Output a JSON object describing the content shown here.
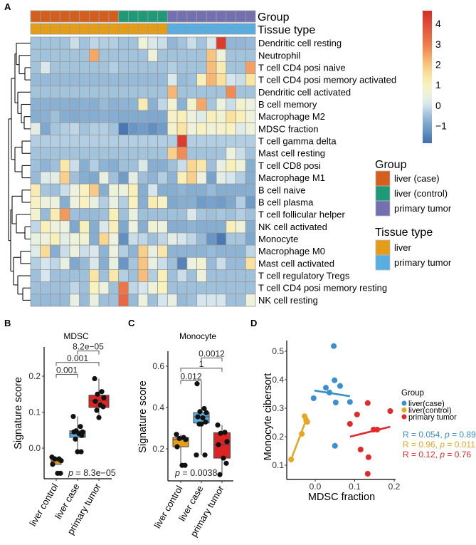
{
  "panel_labels": {
    "a": "A",
    "b": "B",
    "c": "C",
    "d": "D"
  },
  "heatmap": {
    "annotation_titles": {
      "group": "Group",
      "tissue": "Tissue type"
    },
    "column_group": [
      0,
      0,
      0,
      0,
      0,
      0,
      0,
      0,
      0,
      1,
      1,
      1,
      1,
      1,
      2,
      2,
      2,
      2,
      2,
      2,
      2,
      2,
      2
    ],
    "column_tissue": [
      0,
      0,
      0,
      0,
      0,
      0,
      0,
      0,
      0,
      0,
      0,
      0,
      0,
      0,
      1,
      1,
      1,
      1,
      1,
      1,
      1,
      1,
      1
    ],
    "rows": [
      "Dendritic cell resting",
      "Neutrophil",
      "T cell CD4 posi naive",
      "T cell CD4 posi memory activated",
      "Dendritic cell activated",
      "B cell memory",
      "Macrophage M2",
      "MDSC fraction",
      "T cell gamma delta",
      "Mast cell resting",
      "T cell CD8 posi",
      "Macrophage M1",
      "B cell naive",
      "B cell plasma",
      "T cell follicular helper",
      "NK cell activated",
      "Monocyte",
      "Macrophage M0",
      "Mast cell activated",
      "T cell regulatory Tregs",
      "T cell CD4 posi memory resting",
      "NK cell resting"
    ],
    "values": [
      [
        -0.45,
        -0.45,
        -0.45,
        -0.45,
        -0.1,
        -0.45,
        -0.2,
        -0.3,
        -0.3,
        -0.45,
        -0.45,
        0.6,
        0.1,
        -0.1,
        -0.65,
        -0.45,
        -0.1,
        -0.45,
        0.1,
        4.3,
        -0.65,
        -0.65,
        -0.6
      ],
      [
        -0.45,
        -0.45,
        -0.45,
        -0.45,
        -0.45,
        -0.45,
        2.4,
        -0.45,
        -0.45,
        -0.45,
        -0.45,
        -0.45,
        0.6,
        -0.45,
        -0.45,
        -0.45,
        -0.45,
        -0.45,
        2.0,
        0.6,
        -0.45,
        -0.45,
        -0.45
      ],
      [
        -0.45,
        0.1,
        -0.45,
        -0.45,
        -0.45,
        -0.45,
        -0.45,
        -0.45,
        -0.3,
        -0.45,
        -0.45,
        -0.45,
        -0.45,
        -0.45,
        -0.3,
        -0.45,
        -0.45,
        -0.45,
        2.1,
        1.2,
        -0.45,
        -0.45,
        2.5
      ],
      [
        -0.6,
        -0.6,
        -0.6,
        -0.6,
        -0.6,
        -0.6,
        -0.6,
        -0.6,
        -0.6,
        -0.6,
        -0.6,
        -0.6,
        -0.6,
        -0.6,
        0.1,
        -0.6,
        -0.5,
        1.1,
        2.2,
        1.5,
        0.0,
        -0.1,
        1.4
      ],
      [
        -0.45,
        -0.45,
        -0.45,
        -0.45,
        -0.45,
        -0.45,
        -0.45,
        -0.45,
        -0.45,
        -0.45,
        -0.45,
        -0.45,
        -0.45,
        -0.45,
        2.2,
        -0.45,
        -0.45,
        -0.45,
        -0.45,
        -0.45,
        2.8,
        -0.45,
        -0.45
      ],
      [
        -0.75,
        -0.75,
        -0.75,
        -0.75,
        -0.8,
        -0.75,
        -0.8,
        -0.6,
        -0.75,
        -0.7,
        -0.7,
        1.2,
        -0.75,
        -0.2,
        0.7,
        -0.75,
        0.8,
        2.4,
        -0.4,
        0.5,
        -0.1,
        0.8,
        0.5
      ],
      [
        -0.8,
        -0.75,
        -0.5,
        -0.8,
        -0.85,
        -0.8,
        -0.8,
        -0.75,
        -0.8,
        -0.85,
        -0.85,
        -0.85,
        -0.9,
        -0.9,
        0.9,
        1.1,
        0.5,
        0.2,
        1.1,
        0.7,
        1.5,
        1.1,
        0.6
      ],
      [
        0.3,
        -0.9,
        -0.4,
        -0.3,
        -0.2,
        -0.45,
        -0.3,
        -0.3,
        -0.45,
        -1.7,
        -1.2,
        -1.1,
        -1.3,
        -1.1,
        0.8,
        1.4,
        0.6,
        1.0,
        0.6,
        0.8,
        1.0,
        0.2,
        0.6
      ],
      [
        -0.3,
        -0.3,
        -0.3,
        -0.3,
        -0.3,
        -0.3,
        -0.3,
        -0.3,
        -0.3,
        -0.3,
        -0.3,
        -0.3,
        -0.3,
        -0.3,
        -0.3,
        4.3,
        -0.3,
        -0.3,
        -0.3,
        -0.3,
        -0.3,
        -0.3,
        -0.3
      ],
      [
        -0.45,
        -0.45,
        -0.45,
        -0.45,
        -0.45,
        -0.45,
        -0.45,
        -0.45,
        -0.45,
        -0.45,
        -0.45,
        -0.45,
        -0.45,
        -0.45,
        1.8,
        2.8,
        -0.45,
        -0.45,
        -0.45,
        -0.45,
        0.5,
        -0.1,
        -0.45
      ],
      [
        -0.5,
        -0.7,
        -0.5,
        1.3,
        -0.1,
        -0.8,
        -0.3,
        -0.7,
        -0.8,
        -0.5,
        -0.5,
        0.1,
        -0.8,
        -0.8,
        -0.5,
        -0.1,
        1.7,
        1.3,
        -0.5,
        0.4,
        1.1,
        0.6,
        -0.8
      ],
      [
        -0.6,
        0.2,
        0.3,
        1.8,
        -0.5,
        -0.8,
        -0.9,
        0.4,
        -0.5,
        -1.1,
        0.3,
        -0.5,
        -0.7,
        -0.3,
        -0.7,
        1.1,
        1.8,
        0.5,
        -1.0,
        0.3,
        0.0,
        -0.3,
        -0.8
      ],
      [
        1.2,
        -0.4,
        -0.5,
        -0.1,
        0.5,
        1.0,
        1.9,
        -0.8,
        0.6,
        0.5,
        1.1,
        -0.8,
        0.0,
        -0.8,
        -0.8,
        -0.7,
        -0.8,
        -0.8,
        -0.6,
        -0.8,
        -0.8,
        -0.8,
        -0.8
      ],
      [
        0.9,
        0.5,
        0.5,
        -0.8,
        0.5,
        1.0,
        0.4,
        -0.3,
        0.4,
        -0.3,
        1.0,
        -0.8,
        1.2,
        0.9,
        -0.9,
        -0.8,
        -0.8,
        -1.1,
        -1.0,
        -1.1,
        -0.9,
        -0.3,
        -1.1
      ],
      [
        0.8,
        -0.6,
        1.2,
        2.6,
        -0.5,
        -0.6,
        -0.6,
        -0.5,
        1.1,
        -0.5,
        0.4,
        -0.5,
        -0.5,
        -0.5,
        -0.5,
        -0.5,
        0.1,
        -0.4,
        -0.5,
        -0.4,
        -0.5,
        -0.3,
        -0.5
      ],
      [
        -0.2,
        1.1,
        0.5,
        0.5,
        -0.9,
        1.1,
        -0.8,
        0.1,
        1.1,
        -0.9,
        0.5,
        -0.8,
        0.7,
        0.5,
        -0.8,
        -0.8,
        -0.7,
        -0.8,
        -0.8,
        -0.8,
        1.1,
        0.6,
        -0.8
      ],
      [
        0.4,
        0.5,
        1.1,
        0.3,
        0.6,
        0.7,
        -0.8,
        1.7,
        0.5,
        -1.3,
        -0.1,
        -0.2,
        -0.5,
        -0.2,
        0.3,
        0.0,
        -0.2,
        -0.6,
        -1.2,
        -1.7,
        -0.4,
        -0.4,
        -0.9
      ],
      [
        0.2,
        1.6,
        -0.8,
        -0.1,
        0.5,
        -0.1,
        0.1,
        -0.7,
        0.5,
        -0.3,
        -0.7,
        1.8,
        0.4,
        1.3,
        -0.7,
        -0.7,
        -0.7,
        -0.7,
        -0.6,
        -0.7,
        -0.7,
        -0.7,
        -0.2
      ],
      [
        -0.3,
        0.0,
        -0.2,
        0.4,
        -0.9,
        -0.6,
        0.1,
        -0.8,
        0.4,
        -1.2,
        -0.4,
        2.0,
        0.4,
        -0.1,
        -0.5,
        -1.5,
        0.5,
        0.7,
        -0.6,
        -0.1,
        -0.6,
        -0.6,
        1.5
      ],
      [
        -0.5,
        0.0,
        -0.5,
        -0.5,
        -0.5,
        -0.5,
        1.4,
        -0.5,
        1.3,
        -0.3,
        -0.5,
        2.1,
        -0.3,
        1.1,
        -0.5,
        -0.1,
        -0.5,
        0.6,
        -0.5,
        -0.5,
        -0.5,
        -0.5,
        -0.5
      ],
      [
        -0.5,
        -0.5,
        -0.5,
        -0.5,
        -0.2,
        -0.5,
        1.0,
        0.5,
        -0.5,
        3.1,
        -0.2,
        0.0,
        0.6,
        1.0,
        -0.5,
        -0.5,
        -0.5,
        -0.5,
        -0.5,
        -0.5,
        -0.5,
        -0.5,
        -0.5
      ],
      [
        -0.6,
        -0.6,
        -0.6,
        -0.6,
        0.4,
        -0.6,
        0.4,
        -0.5,
        -0.5,
        3.4,
        -0.6,
        0.5,
        -0.5,
        0.0,
        0.4,
        -0.6,
        -0.5,
        0.0,
        0.0,
        0.0,
        -0.5,
        -0.5,
        0.6
      ]
    ],
    "colorbar": {
      "range": [
        -1.85,
        4.63
      ],
      "tick_values": [
        4,
        3,
        2,
        1,
        0,
        -1
      ],
      "tick_labels": [
        "4",
        "3",
        "2",
        "1",
        "0",
        "−1"
      ]
    }
  },
  "legends": {
    "group": {
      "title": "Group",
      "items": [
        {
          "label": "liver (case)",
          "color": "#d45f1c"
        },
        {
          "label": "liver (control)",
          "color": "#1f9a77"
        },
        {
          "label": "primary tumor",
          "color": "#7470b0"
        }
      ]
    },
    "tissue": {
      "title": "Tissue type",
      "items": [
        {
          "label": "liver",
          "color": "#e39d17"
        },
        {
          "label": "primary tumor",
          "color": "#58aee0"
        }
      ]
    }
  },
  "chart_data": [
    {
      "type": "box",
      "title": "MDSC",
      "ylabel": "Signature score",
      "categories": [
        "liver control",
        "liver case",
        "primary tumor"
      ],
      "colors": [
        "#e39d17",
        "#58aee0",
        "#dd2424"
      ],
      "yticks": [
        0,
        0.1,
        0.2
      ],
      "ytick_labels": [
        "0.0",
        "0.1",
        "0.2"
      ],
      "box_stats": [
        [
          -0.045,
          -0.045,
          -0.036,
          -0.03,
          -0.025
        ],
        [
          -0.01,
          0.03,
          0.04,
          0.048,
          0.088
        ],
        [
          0.085,
          0.113,
          0.133,
          0.147,
          0.193
        ]
      ],
      "points": [
        [
          -0.025,
          -0.03,
          -0.03,
          -0.035,
          -0.045,
          -0.07,
          -0.07
        ],
        [
          0.088,
          0.06,
          0.048,
          0.045,
          0.045,
          0.04,
          0.035,
          0.025,
          -0.01,
          -0.01
        ],
        [
          0.193,
          0.157,
          0.15,
          0.14,
          0.13,
          0.12,
          0.115,
          0.105,
          0.085
        ]
      ],
      "comparisons": [
        {
          "from": 0,
          "to": 1,
          "y": 0.205,
          "label": "0.001"
        },
        {
          "from": 0,
          "to": 2,
          "y": 0.238,
          "label": "0.001"
        },
        {
          "from": 1,
          "to": 2,
          "y": 0.27,
          "label": "8.2e−05"
        }
      ],
      "stat_text": {
        "p": "p",
        "rest": " = 8.3e−05"
      }
    },
    {
      "type": "box",
      "title": "Monocyte",
      "ylabel": "Signature score",
      "categories": [
        "liver control",
        "liver case",
        "primary tumor"
      ],
      "colors": [
        "#e39d17",
        "#58aee0",
        "#dd2424"
      ],
      "yticks": [
        0.2,
        0.4,
        0.6
      ],
      "ytick_labels": [
        "0.2",
        "0.4",
        "0.6"
      ],
      "box_stats": [
        [
          0.12,
          0.21,
          0.245,
          0.255,
          0.27
        ],
        [
          0.17,
          0.325,
          0.355,
          0.375,
          0.515
        ],
        [
          0.075,
          0.155,
          0.222,
          0.278,
          0.315
        ]
      ],
      "points": [
        [
          0.27,
          0.255,
          0.25,
          0.245,
          0.21,
          0.12,
          0.12
        ],
        [
          0.515,
          0.395,
          0.38,
          0.375,
          0.355,
          0.35,
          0.33,
          0.32,
          0.32,
          0.17,
          0.17
        ],
        [
          0.315,
          0.28,
          0.275,
          0.235,
          0.22,
          0.155,
          0.13,
          0.075
        ]
      ],
      "comparisons": [
        {
          "from": 0,
          "to": 1,
          "y": 0.53,
          "label": "0.012"
        },
        {
          "from": 0,
          "to": 2,
          "y": 0.59,
          "label": "1"
        },
        {
          "from": 1,
          "to": 2,
          "y": 0.64,
          "label": "0.0012"
        }
      ],
      "stat_text": {
        "p": "p",
        "rest": " = 0.0038"
      }
    },
    {
      "type": "scatter",
      "xlabel": "MDSC fraction",
      "ylabel": "Monocyte cibersort",
      "xticks": [
        0,
        0.1,
        0.2
      ],
      "xtick_labels": [
        "0.0",
        "0.1",
        "0.2"
      ],
      "yticks": [
        0.1,
        0.2,
        0.3,
        0.4,
        0.5
      ],
      "ytick_labels": [
        "0.1",
        "0.2",
        "0.3",
        "0.4",
        "0.5"
      ],
      "legend": {
        "title": "Group",
        "placement": "right"
      },
      "series": [
        {
          "name": "liver(case)",
          "color": "#3a8fd0",
          "x": [
            0.047,
            0.049,
            0.063,
            0.027,
            0.036,
            -0.004,
            0.052,
            0.088,
            0.05
          ],
          "y": [
            0.518,
            0.398,
            0.378,
            0.372,
            0.355,
            0.335,
            0.32,
            0.322,
            0.168
          ],
          "fit": [
            [
              -0.002,
              0.362
            ],
            [
              0.088,
              0.342
            ]
          ],
          "stat": {
            "r": "R = 0.054, ",
            "p": "p",
            "rest": " = 0.89"
          }
        },
        {
          "name": "liver(control)",
          "color": "#e8a622",
          "x": [
            -0.061,
            -0.034,
            -0.027,
            -0.023,
            -0.02
          ],
          "y": [
            0.12,
            0.21,
            0.272,
            0.258,
            0.252
          ],
          "fit": [
            [
              -0.061,
              0.12
            ],
            [
              -0.02,
              0.27
            ]
          ],
          "stat": {
            "r": "R = 0.96, ",
            "p": "p",
            "rest": " = 0.011"
          }
        },
        {
          "name": "primary tumor",
          "color": "#e12a2a",
          "x": [
            0.133,
            0.19,
            0.106,
            0.088,
            0.148,
            0.157,
            0.115,
            0.135,
            0.133
          ],
          "y": [
            0.318,
            0.29,
            0.278,
            0.245,
            0.225,
            0.225,
            0.155,
            0.128,
            0.07
          ],
          "fit": [
            [
              0.088,
              0.2
            ],
            [
              0.19,
              0.235
            ]
          ],
          "stat": {
            "r": "R = 0.12, ",
            "p": "p",
            "rest": " = 0.76"
          }
        }
      ]
    }
  ]
}
